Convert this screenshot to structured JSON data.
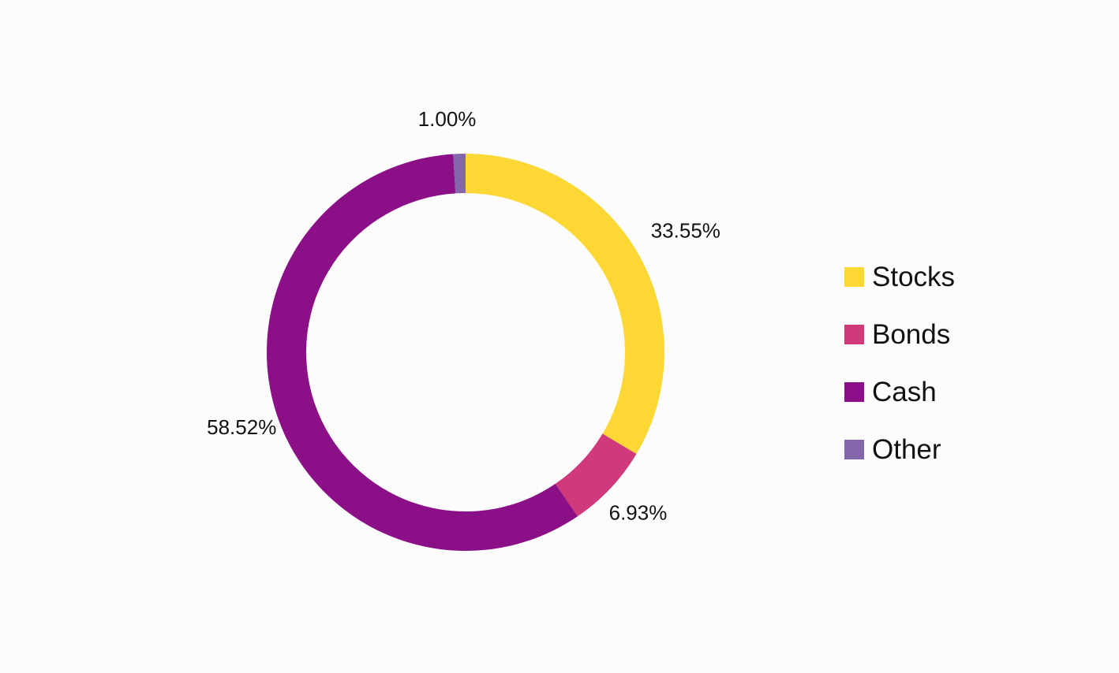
{
  "chart_data": {
    "type": "pie",
    "variant": "donut",
    "start_angle": "12 o'clock",
    "direction": "clockwise",
    "slices": [
      {
        "label": "Stocks",
        "value": 33.55,
        "value_label": "33.55%",
        "color": "#fdd835"
      },
      {
        "label": "Bonds",
        "value": 6.93,
        "value_label": "6.93%",
        "color": "#d0397a"
      },
      {
        "label": "Cash",
        "value": 58.52,
        "value_label": "58.52%",
        "color": "#8b0f87"
      },
      {
        "label": "Other",
        "value": 1.0,
        "value_label": "1.00%",
        "color": "#8466aa"
      }
    ],
    "title": "",
    "legend_position": "right"
  }
}
